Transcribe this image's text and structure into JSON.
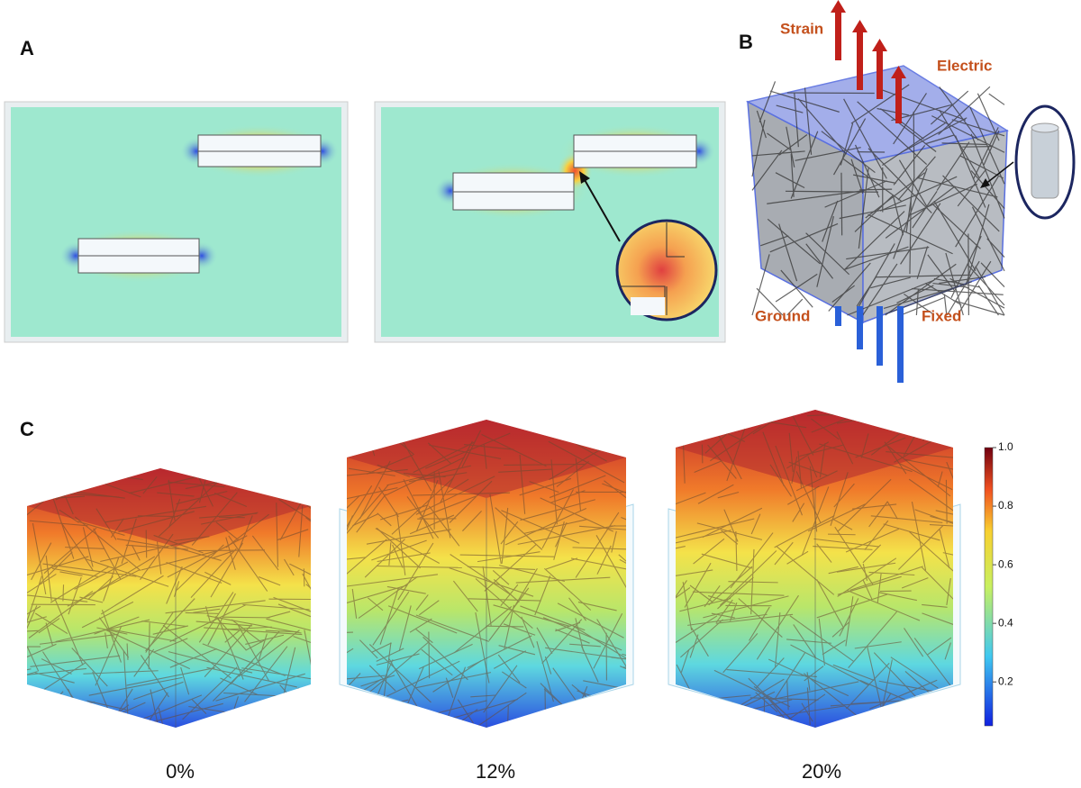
{
  "panels": {
    "a": {
      "label": "A"
    },
    "b": {
      "label": "B",
      "strain": "Strain",
      "electric": "Electric",
      "ground": "Ground",
      "fixed": "Fixed"
    },
    "c": {
      "label": "C",
      "strains": [
        "0%",
        "12%",
        "20%"
      ],
      "colorbar": {
        "range": [
          0.05,
          1
        ],
        "ticks": [
          {
            "value": 1,
            "label": "1.0"
          },
          0.8,
          0.6,
          0.4,
          0.2
        ]
      }
    }
  }
}
